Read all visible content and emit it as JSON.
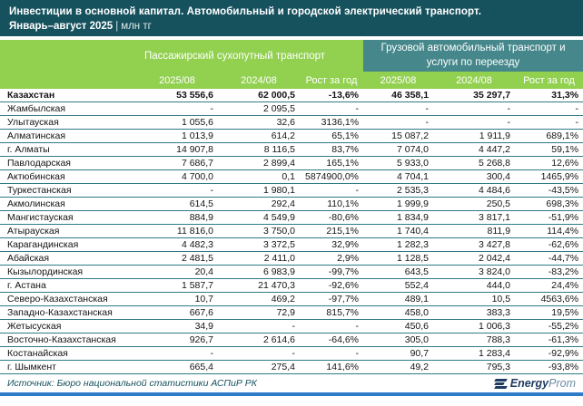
{
  "header": {
    "title": "Инвестиции в основной капитал. Автомобильный и городской электрический транспорт.",
    "period": "Январь–август 2025",
    "separator": "|",
    "unit": "млн тг"
  },
  "chart_data": {
    "type": "table",
    "title": "Инвестиции в основной капитал. Автомобильный и городской электрический транспорт.",
    "period": "Январь–август 2025",
    "unit": "млн тг",
    "group_headers": [
      {
        "label": "Пассажирский сухопутный транспорт",
        "color": "#92D050"
      },
      {
        "label": "Грузовой автомобильный транспорт и услуги по переезду",
        "color": "#45878A"
      }
    ],
    "sub_headers": [
      "2025/08",
      "2024/08",
      "Рост за год",
      "2025/08",
      "2024/08",
      "Рост за год"
    ],
    "rows": [
      {
        "region": "Казахстан",
        "bold": true,
        "values": [
          "53 556,6",
          "62 000,5",
          "-13,6%",
          "46 358,1",
          "35 297,7",
          "31,3%"
        ]
      },
      {
        "region": "Жамбылская",
        "values": [
          "-",
          "2 095,5",
          "-",
          "-",
          "-",
          "-"
        ]
      },
      {
        "region": "Улытауская",
        "values": [
          "1 055,6",
          "32,6",
          "3136,1%",
          "-",
          "-",
          "-"
        ]
      },
      {
        "region": "Алматинская",
        "values": [
          "1 013,9",
          "614,2",
          "65,1%",
          "15 087,2",
          "1 911,9",
          "689,1%"
        ]
      },
      {
        "region": "г. Алматы",
        "values": [
          "14 907,8",
          "8 116,5",
          "83,7%",
          "7 074,0",
          "4 447,2",
          "59,1%"
        ]
      },
      {
        "region": "Павлодарская",
        "values": [
          "7 686,7",
          "2 899,4",
          "165,1%",
          "5 933,0",
          "5 268,8",
          "12,6%"
        ]
      },
      {
        "region": "Актюбинская",
        "values": [
          "4 700,0",
          "0,1",
          "5874900,0%",
          "4 704,1",
          "300,4",
          "1465,9%"
        ]
      },
      {
        "region": "Туркестанская",
        "values": [
          "-",
          "1 980,1",
          "-",
          "2 535,3",
          "4 484,6",
          "-43,5%"
        ]
      },
      {
        "region": "Акмолинская",
        "values": [
          "614,5",
          "292,4",
          "110,1%",
          "1 999,9",
          "250,5",
          "698,3%"
        ]
      },
      {
        "region": "Мангистауская",
        "values": [
          "884,9",
          "4 549,9",
          "-80,6%",
          "1 834,9",
          "3 817,1",
          "-51,9%"
        ]
      },
      {
        "region": "Атырауская",
        "values": [
          "11 816,0",
          "3 750,0",
          "215,1%",
          "1 740,4",
          "811,9",
          "114,4%"
        ]
      },
      {
        "region": "Карагандинская",
        "values": [
          "4 482,3",
          "3 372,5",
          "32,9%",
          "1 282,3",
          "3 427,8",
          "-62,6%"
        ]
      },
      {
        "region": "Абайская",
        "values": [
          "2 481,5",
          "2 411,0",
          "2,9%",
          "1 128,5",
          "2 042,4",
          "-44,7%"
        ]
      },
      {
        "region": "Кызылординская",
        "values": [
          "20,4",
          "6 983,9",
          "-99,7%",
          "643,5",
          "3 824,0",
          "-83,2%"
        ]
      },
      {
        "region": "г. Астана",
        "values": [
          "1 587,7",
          "21 470,3",
          "-92,6%",
          "552,4",
          "444,0",
          "24,4%"
        ]
      },
      {
        "region": "Северо-Казахстанская",
        "values": [
          "10,7",
          "469,2",
          "-97,7%",
          "489,1",
          "10,5",
          "4563,6%"
        ]
      },
      {
        "region": "Западно-Казахстанская",
        "values": [
          "667,6",
          "72,9",
          "815,7%",
          "458,0",
          "383,3",
          "19,5%"
        ]
      },
      {
        "region": "Жетысуская",
        "values": [
          "34,9",
          "-",
          "-",
          "450,6",
          "1 006,3",
          "-55,2%"
        ]
      },
      {
        "region": "Восточно-Казахстанская",
        "values": [
          "926,7",
          "2 614,6",
          "-64,6%",
          "305,0",
          "788,3",
          "-61,3%"
        ]
      },
      {
        "region": "Костанайская",
        "values": [
          "-",
          "-",
          "-",
          "90,7",
          "1 283,4",
          "-92,9%"
        ]
      },
      {
        "region": "г. Шымкент",
        "values": [
          "665,4",
          "275,4",
          "141,6%",
          "49,2",
          "795,3",
          "-93,8%"
        ]
      }
    ]
  },
  "footer": {
    "source": "Источник: Бюро национальной статистики АСПиР РК",
    "logo_bold": "Energy",
    "logo_light": "Prom"
  },
  "colors": {
    "header_bg": "#16525E",
    "group_green": "#92D050",
    "group_teal": "#45878A",
    "row_border": "#2E7A87",
    "footer_text": "#16525E",
    "bottom_bar": "#2E7CC9",
    "logo_dark": "#1F3B5F",
    "logo_light": "#6D8CA3"
  }
}
